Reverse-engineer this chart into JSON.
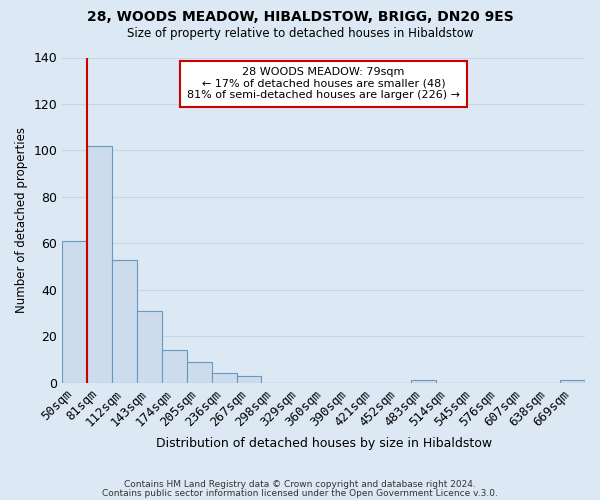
{
  "title": "28, WOODS MEADOW, HIBALDSTOW, BRIGG, DN20 9ES",
  "subtitle": "Size of property relative to detached houses in Hibaldstow",
  "xlabel": "Distribution of detached houses by size in Hibaldstow",
  "ylabel": "Number of detached properties",
  "footer_line1": "Contains HM Land Registry data © Crown copyright and database right 2024.",
  "footer_line2": "Contains public sector information licensed under the Open Government Licence v.3.0.",
  "bar_labels": [
    "50sqm",
    "81sqm",
    "112sqm",
    "143sqm",
    "174sqm",
    "205sqm",
    "236sqm",
    "267sqm",
    "298sqm",
    "329sqm",
    "360sqm",
    "390sqm",
    "421sqm",
    "452sqm",
    "483sqm",
    "514sqm",
    "545sqm",
    "576sqm",
    "607sqm",
    "638sqm",
    "669sqm"
  ],
  "bar_values": [
    61,
    102,
    53,
    31,
    14,
    9,
    4,
    3,
    0,
    0,
    0,
    0,
    0,
    0,
    1,
    0,
    0,
    0,
    0,
    0,
    1
  ],
  "bar_color": "#ccdcec",
  "bar_edge_color": "#6699bb",
  "marker_color": "#cc0000",
  "marker_bar_index": 1,
  "ylim": [
    0,
    140
  ],
  "yticks": [
    0,
    20,
    40,
    60,
    80,
    100,
    120,
    140
  ],
  "annotation_title": "28 WOODS MEADOW: 79sqm",
  "annotation_line1": "← 17% of detached houses are smaller (48)",
  "annotation_line2": "81% of semi-detached houses are larger (226) →",
  "annotation_box_color": "#ffffff",
  "annotation_border_color": "#cc0000",
  "grid_color": "#c8d4e0",
  "background_color": "#dce8f4"
}
